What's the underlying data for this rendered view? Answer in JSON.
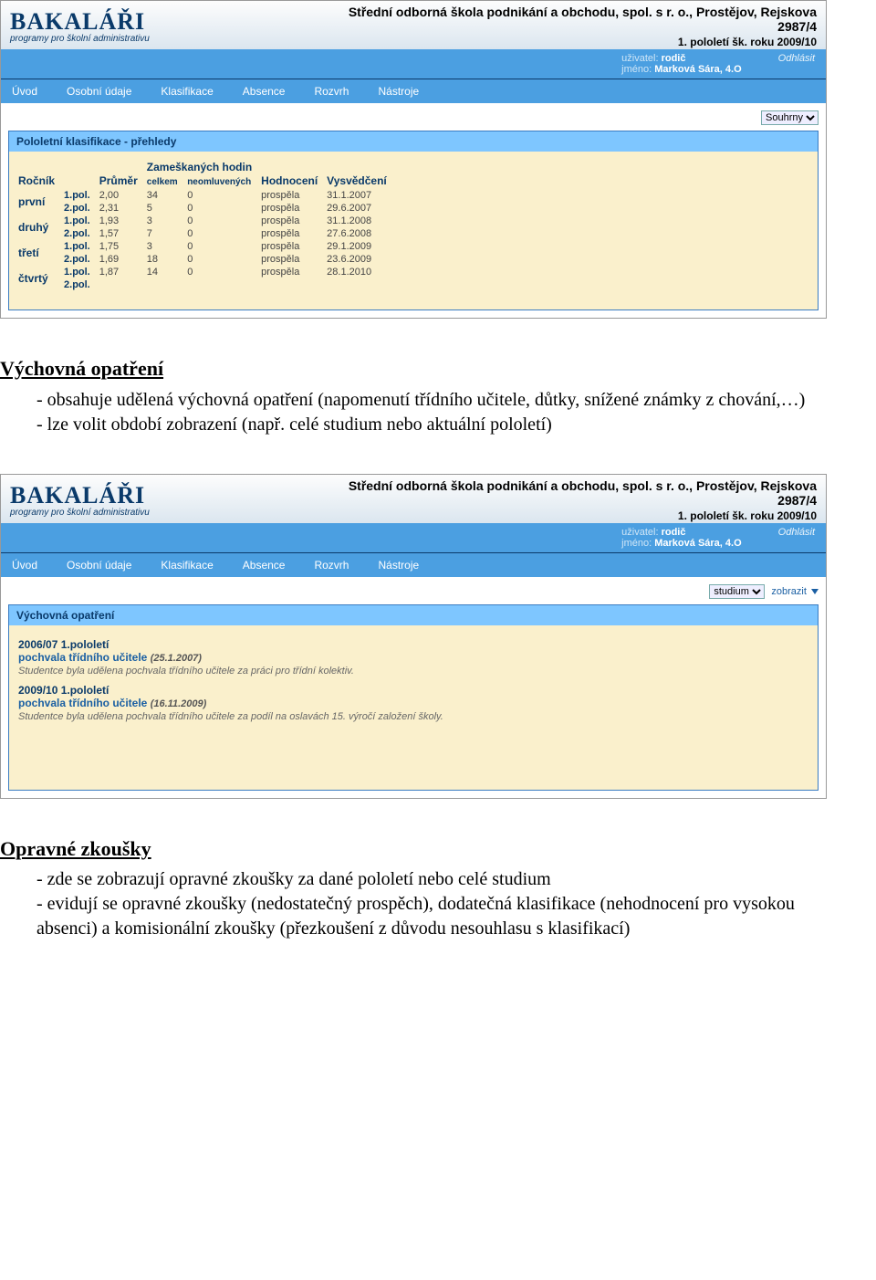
{
  "logo": {
    "title": "BAKALÁŘI",
    "subtitle": "programy pro školní administrativu"
  },
  "school": {
    "name": "Střední odborná škola podnikání a obchodu, spol. s r. o., Prostějov, Rejskova",
    "address": "2987/4",
    "term": "1. pololetí šk. roku 2009/10"
  },
  "user": {
    "userLabel": "uživatel:",
    "userValue": "rodič",
    "nameLabel": "jméno:",
    "nameValue": "Marková Sára, 4.O",
    "logout": "Odhlásit"
  },
  "nav": [
    "Úvod",
    "Osobní údaje",
    "Klasifikace",
    "Absence",
    "Rozvrh",
    "Nástroje"
  ],
  "filter1": {
    "options": [
      "Souhrny"
    ],
    "selected": "Souhrny"
  },
  "filter2": {
    "options": [
      "studium"
    ],
    "selected": "studium",
    "zobrazit": "zobrazit"
  },
  "panel1": {
    "title": "Pololetní klasifikace - přehledy",
    "headers": {
      "rocnik": "Ročník",
      "prumer": "Průměr",
      "zameskanych": "Zameškaných hodin",
      "celkem": "celkem",
      "neomluvenych": "neomluvených",
      "hodnoceni": "Hodnocení",
      "vysvedceni": "Vysvědčení"
    },
    "years": [
      {
        "label": "první",
        "p1": {
          "pol": "1.pol.",
          "avg": "2,00",
          "tot": "34",
          "un": "0",
          "hod": "prospěla",
          "dat": "31.1.2007"
        },
        "p2": {
          "pol": "2.pol.",
          "avg": "2,31",
          "tot": "5",
          "un": "0",
          "hod": "prospěla",
          "dat": "29.6.2007"
        }
      },
      {
        "label": "druhý",
        "p1": {
          "pol": "1.pol.",
          "avg": "1,93",
          "tot": "3",
          "un": "0",
          "hod": "prospěla",
          "dat": "31.1.2008"
        },
        "p2": {
          "pol": "2.pol.",
          "avg": "1,57",
          "tot": "7",
          "un": "0",
          "hod": "prospěla",
          "dat": "27.6.2008"
        }
      },
      {
        "label": "třetí",
        "p1": {
          "pol": "1.pol.",
          "avg": "1,75",
          "tot": "3",
          "un": "0",
          "hod": "prospěla",
          "dat": "29.1.2009"
        },
        "p2": {
          "pol": "2.pol.",
          "avg": "1,69",
          "tot": "18",
          "un": "0",
          "hod": "prospěla",
          "dat": "23.6.2009"
        }
      },
      {
        "label": "čtvrtý",
        "p1": {
          "pol": "1.pol.",
          "avg": "1,87",
          "tot": "14",
          "un": "0",
          "hod": "prospěla",
          "dat": "28.1.2010"
        },
        "p2": {
          "pol": "2.pol.",
          "avg": "",
          "tot": "",
          "un": "",
          "hod": "",
          "dat": ""
        }
      }
    ]
  },
  "doc1": {
    "heading": "Výchovná opatření",
    "lines": [
      "obsahuje udělená výchovná opatření (napomenutí třídního učitele, důtky, snížené známky z chování,…)",
      "lze volit období zobrazení (např. celé studium nebo aktuální pololetí)"
    ]
  },
  "panel2": {
    "title": "Výchovná opatření",
    "items": [
      {
        "period": "2006/07 1.pololetí",
        "title": "pochvala třídního učitele",
        "date": "(25.1.2007)",
        "desc": "Studentce byla udělena pochvala třídního učitele za práci pro třídní kolektiv."
      },
      {
        "period": "2009/10 1.pololetí",
        "title": "pochvala třídního učitele",
        "date": "(16.11.2009)",
        "desc": "Studentce byla udělena pochvala třídního učitele za podíl na oslavách 15. výročí založení školy."
      }
    ]
  },
  "doc2": {
    "heading": "Opravné zkoušky",
    "lines": [
      "zde se zobrazují opravné zkoušky za dané pololetí nebo celé studium",
      "evidují se opravné zkoušky (nedostatečný prospěch), dodatečná klasifikace (nehodnocení pro vysokou absenci) a komisionální zkoušky (přezkoušení z důvodu nesouhlasu s klasifikací)"
    ]
  }
}
